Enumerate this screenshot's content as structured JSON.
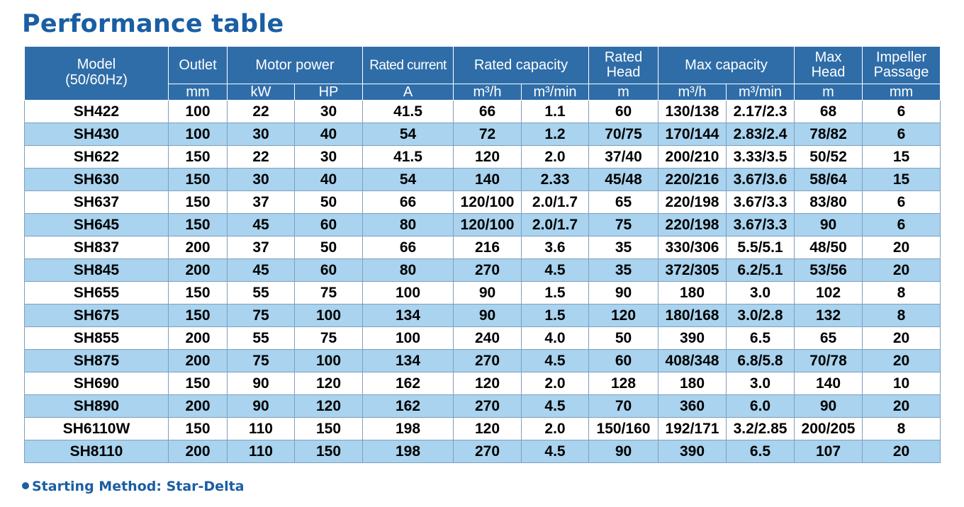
{
  "title": "Performance table",
  "header": {
    "model": [
      "Model",
      "(50/60Hz)"
    ],
    "outlet": "Outlet",
    "motor_power": "Motor power",
    "rated_current": "Rated current",
    "rated_capacity": "Rated capacity",
    "rated_head": [
      "Rated",
      "Head"
    ],
    "max_capacity": "Max capacity",
    "max_head": [
      "Max",
      "Head"
    ],
    "impeller_passage": [
      "Impeller",
      "Passage"
    ],
    "units": [
      "mm",
      "kW",
      "HP",
      "A",
      "m³/h",
      "m³/min",
      "m",
      "m³/h",
      "m³/min",
      "m",
      "mm"
    ]
  },
  "rows": [
    [
      "SH422",
      "100",
      "22",
      "30",
      "41.5",
      "66",
      "1.1",
      "60",
      "130/138",
      "2.17/2.3",
      "68",
      "6"
    ],
    [
      "SH430",
      "100",
      "30",
      "40",
      "54",
      "72",
      "1.2",
      "70/75",
      "170/144",
      "2.83/2.4",
      "78/82",
      "6"
    ],
    [
      "SH622",
      "150",
      "22",
      "30",
      "41.5",
      "120",
      "2.0",
      "37/40",
      "200/210",
      "3.33/3.5",
      "50/52",
      "15"
    ],
    [
      "SH630",
      "150",
      "30",
      "40",
      "54",
      "140",
      "2.33",
      "45/48",
      "220/216",
      "3.67/3.6",
      "58/64",
      "15"
    ],
    [
      "SH637",
      "150",
      "37",
      "50",
      "66",
      "120/100",
      "2.0/1.7",
      "65",
      "220/198",
      "3.67/3.3",
      "83/80",
      "6"
    ],
    [
      "SH645",
      "150",
      "45",
      "60",
      "80",
      "120/100",
      "2.0/1.7",
      "75",
      "220/198",
      "3.67/3.3",
      "90",
      "6"
    ],
    [
      "SH837",
      "200",
      "37",
      "50",
      "66",
      "216",
      "3.6",
      "35",
      "330/306",
      "5.5/5.1",
      "48/50",
      "20"
    ],
    [
      "SH845",
      "200",
      "45",
      "60",
      "80",
      "270",
      "4.5",
      "35",
      "372/305",
      "6.2/5.1",
      "53/56",
      "20"
    ],
    [
      "SH655",
      "150",
      "55",
      "75",
      "100",
      "90",
      "1.5",
      "90",
      "180",
      "3.0",
      "102",
      "8"
    ],
    [
      "SH675",
      "150",
      "75",
      "100",
      "134",
      "90",
      "1.5",
      "120",
      "180/168",
      "3.0/2.8",
      "132",
      "8"
    ],
    [
      "SH855",
      "200",
      "55",
      "75",
      "100",
      "240",
      "4.0",
      "50",
      "390",
      "6.5",
      "65",
      "20"
    ],
    [
      "SH875",
      "200",
      "75",
      "100",
      "134",
      "270",
      "4.5",
      "60",
      "408/348",
      "6.8/5.8",
      "70/78",
      "20"
    ],
    [
      "SH690",
      "150",
      "90",
      "120",
      "162",
      "120",
      "2.0",
      "128",
      "180",
      "3.0",
      "140",
      "10"
    ],
    [
      "SH890",
      "200",
      "90",
      "120",
      "162",
      "270",
      "4.5",
      "70",
      "360",
      "6.0",
      "90",
      "20"
    ],
    [
      "SH6110W",
      "150",
      "110",
      "150",
      "198",
      "120",
      "2.0",
      "150/160",
      "192/171",
      "3.2/2.85",
      "200/205",
      "8"
    ],
    [
      "SH8110",
      "200",
      "110",
      "150",
      "198",
      "270",
      "4.5",
      "90",
      "390",
      "6.5",
      "107",
      "20"
    ]
  ],
  "footnote": "Starting Method: Star-Delta",
  "colors": {
    "title": "#1a5ea3",
    "header_bg": "#2f6da8",
    "row_alt_bg": "#a9d3ee"
  }
}
